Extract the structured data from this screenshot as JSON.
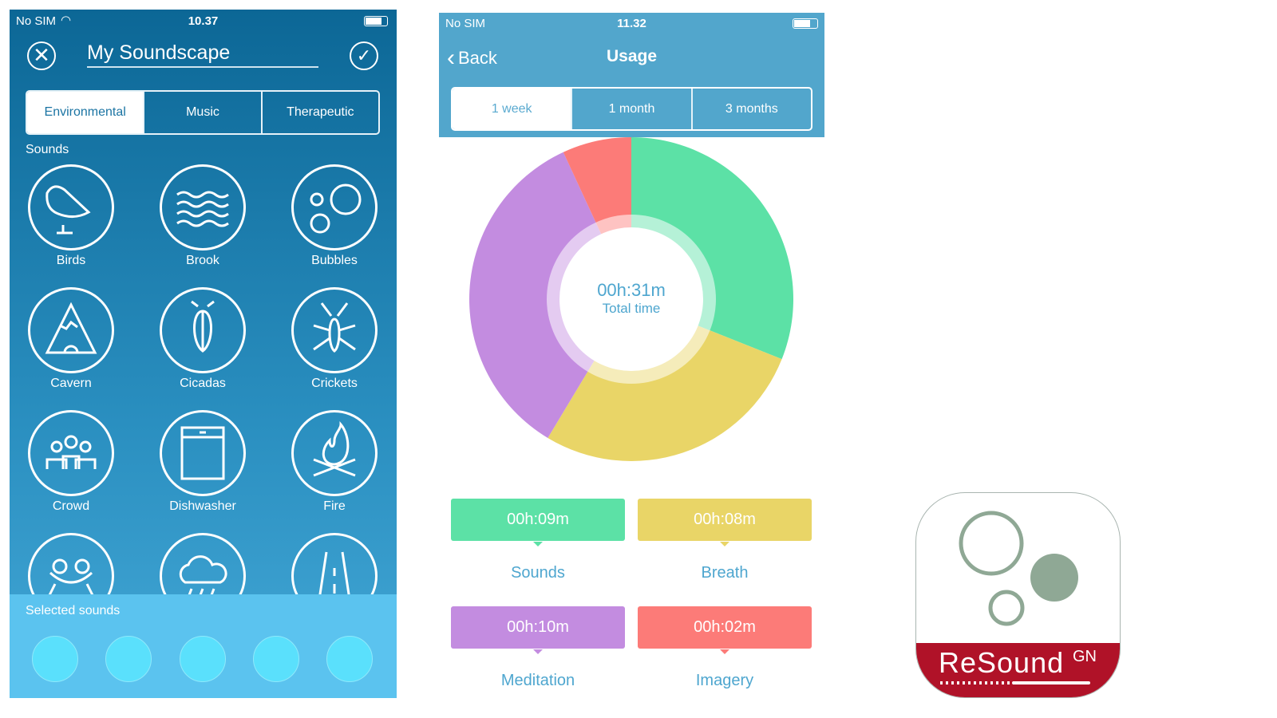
{
  "soundscape": {
    "status": {
      "carrier": "No SIM",
      "time": "10.37"
    },
    "title": "My Soundscape",
    "tabs": [
      {
        "label": "Environmental",
        "active": true
      },
      {
        "label": "Music"
      },
      {
        "label": "Therapeutic"
      }
    ],
    "sounds_label": "Sounds",
    "sounds": [
      {
        "label": "Birds",
        "icon": "bird-icon"
      },
      {
        "label": "Brook",
        "icon": "waves-icon"
      },
      {
        "label": "Bubbles",
        "icon": "bubbles-icon"
      },
      {
        "label": "Cavern",
        "icon": "cavern-icon"
      },
      {
        "label": "Cicadas",
        "icon": "cicada-icon"
      },
      {
        "label": "Crickets",
        "icon": "cricket-icon"
      },
      {
        "label": "Crowd",
        "icon": "crowd-icon"
      },
      {
        "label": "Dishwasher",
        "icon": "dishwasher-icon"
      },
      {
        "label": "Fire",
        "icon": "fire-icon"
      },
      {
        "label": "",
        "icon": "frog-icon"
      },
      {
        "label": "",
        "icon": "rain-cloud-icon"
      },
      {
        "label": "",
        "icon": "road-icon"
      }
    ],
    "selected_label": "Selected sounds",
    "selected_slots": 5
  },
  "usage": {
    "status": {
      "carrier": "No SIM",
      "time": "11.32"
    },
    "back": "Back",
    "title": "Usage",
    "tabs": [
      {
        "label": "1 week",
        "active": true
      },
      {
        "label": "1 month"
      },
      {
        "label": "3 months"
      }
    ],
    "total": {
      "value": "00h:31m",
      "label": "Total time"
    },
    "legend": [
      {
        "value": "00h:09m",
        "label": "Sounds",
        "color": "#5ce1a6"
      },
      {
        "value": "00h:08m",
        "label": "Breath",
        "color": "#e9d567"
      },
      {
        "value": "00h:10m",
        "label": "Meditation",
        "color": "#c38ce0"
      },
      {
        "value": "00h:02m",
        "label": "Imagery",
        "color": "#fc7b78"
      }
    ]
  },
  "chart_data": {
    "type": "pie",
    "categories": [
      "Sounds",
      "Breath",
      "Meditation",
      "Imagery"
    ],
    "values": [
      9,
      8,
      10,
      2
    ],
    "colors": [
      "#5ce1a6",
      "#e9d567",
      "#c38ce0",
      "#fc7b78"
    ]
  },
  "logo": {
    "text": "ReSound",
    "mark": "GN",
    "brand_color": "#b01228",
    "accent_color": "#8fa895"
  }
}
